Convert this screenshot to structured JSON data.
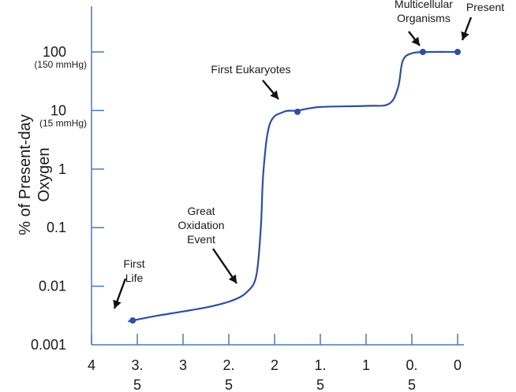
{
  "chart_data": {
    "type": "line",
    "title": "",
    "xlabel": "",
    "ylabel_lines": [
      "% of Present-day",
      "Oxygen"
    ],
    "y_scale": "log",
    "ylim": [
      0.001,
      100
    ],
    "xlim": [
      4,
      0
    ],
    "x_reversed": true,
    "grid": false,
    "x_ticks": [
      {
        "value": 4,
        "lines": [
          "4"
        ]
      },
      {
        "value": 3.5,
        "lines": [
          "3.",
          "5"
        ]
      },
      {
        "value": 3,
        "lines": [
          "3"
        ]
      },
      {
        "value": 2.5,
        "lines": [
          "2.",
          "5"
        ]
      },
      {
        "value": 2,
        "lines": [
          "2"
        ]
      },
      {
        "value": 1.5,
        "lines": [
          "1.",
          "5"
        ]
      },
      {
        "value": 1,
        "lines": [
          "1"
        ]
      },
      {
        "value": 0.5,
        "lines": [
          "0.",
          "5"
        ]
      },
      {
        "value": 0,
        "lines": [
          "0"
        ]
      }
    ],
    "y_ticks": [
      {
        "value": 0.001,
        "label": "0.001",
        "sublabel": ""
      },
      {
        "value": 0.01,
        "label": "0.01",
        "sublabel": ""
      },
      {
        "value": 0.1,
        "label": "0.1",
        "sublabel": ""
      },
      {
        "value": 1,
        "label": "1",
        "sublabel": ""
      },
      {
        "value": 10,
        "label": "10",
        "sublabel": "(15 mmHg)"
      },
      {
        "value": 100,
        "label": "100",
        "sublabel": "(150 mmHg)"
      }
    ],
    "series": [
      {
        "color": "#2e4f9e",
        "points": [
          [
            3.6,
            0.0025
          ],
          [
            3.55,
            0.0026
          ],
          [
            3.3,
            0.0031
          ],
          [
            3.0,
            0.0037
          ],
          [
            2.7,
            0.0045
          ],
          [
            2.45,
            0.0058
          ],
          [
            2.3,
            0.008
          ],
          [
            2.2,
            0.015
          ],
          [
            2.15,
            0.1
          ],
          [
            2.12,
            1.0
          ],
          [
            2.05,
            6.0
          ],
          [
            1.9,
            9.5
          ],
          [
            1.75,
            10.0
          ],
          [
            1.5,
            11.5
          ],
          [
            1.0,
            12.0
          ],
          [
            0.75,
            13.0
          ],
          [
            0.65,
            25.0
          ],
          [
            0.6,
            70.0
          ],
          [
            0.5,
            95.0
          ],
          [
            0.3,
            100.0
          ],
          [
            0.0,
            100.0
          ]
        ]
      }
    ],
    "markers": [
      {
        "x": 3.55,
        "y": 0.0026
      },
      {
        "x": 1.75,
        "y": 9.5
      },
      {
        "x": 0.38,
        "y": 100
      },
      {
        "x": 0.0,
        "y": 100
      }
    ],
    "annotations": [
      {
        "lines": [
          "First",
          "Life"
        ],
        "target": [
          3.55,
          0.0026
        ]
      },
      {
        "lines": [
          "Great",
          "Oxidation",
          "Event"
        ],
        "target": [
          2.4,
          0.0065
        ]
      },
      {
        "lines": [
          "First Eukaryotes"
        ],
        "target": [
          1.75,
          9.5
        ]
      },
      {
        "lines": [
          "Multicellular",
          "Organisms"
        ],
        "target": [
          0.38,
          100
        ]
      },
      {
        "lines": [
          "Present"
        ],
        "target": [
          0.0,
          100
        ]
      }
    ]
  }
}
